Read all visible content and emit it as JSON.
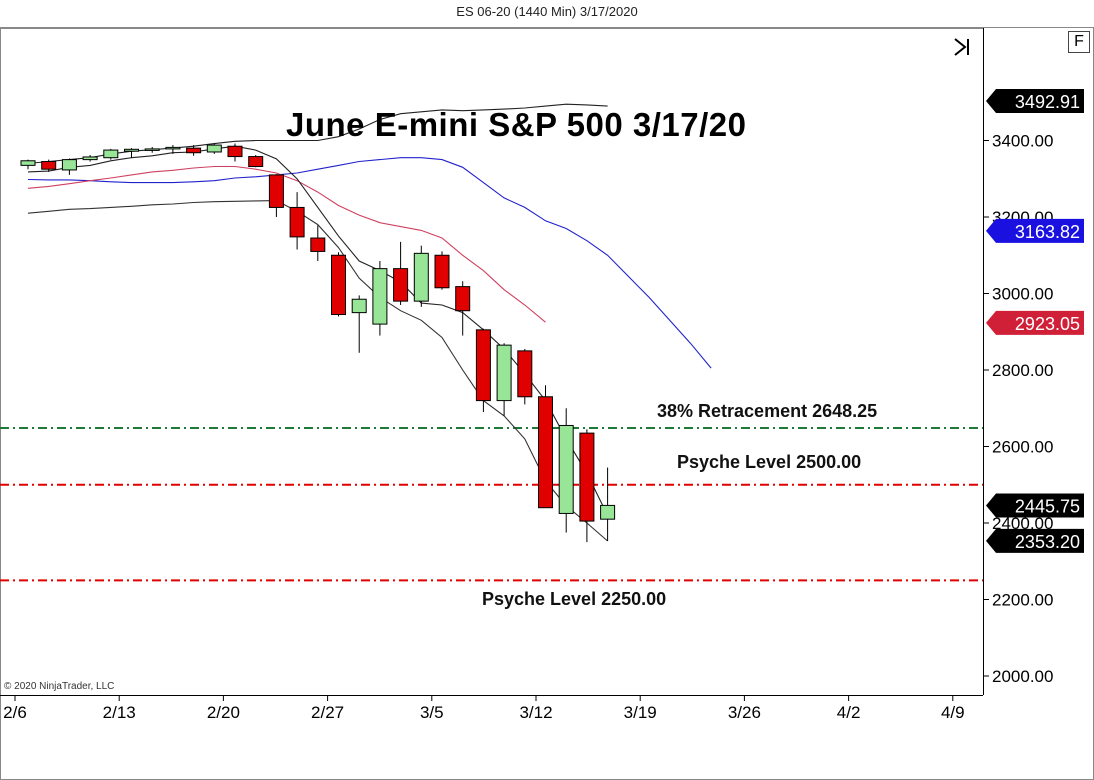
{
  "window": {
    "title": "ES 06-20 (1440 Min)  3/17/2020",
    "f_button": "F"
  },
  "copyright": "© 2020 NinjaTrader, LLC",
  "icons": {
    "scroll_end": "scroll-to-end-icon"
  },
  "colors": {
    "up": "#98e598",
    "down": "#e00000",
    "price_tag": "#000000",
    "blue_tag": "#1a10e0",
    "red_tag": "#d02038",
    "retracement": "#1f7a3a",
    "psyche": "#e00000"
  },
  "chart_data": {
    "type": "candlestick",
    "title": "June E-mini S&P 500 3/17/20",
    "ylim": [
      2000,
      3500
    ],
    "yticks": [
      "2000.00",
      "2200.00",
      "2400.00",
      "2600.00",
      "2800.00",
      "3000.00",
      "3200.00",
      "3400.00"
    ],
    "xticks": [
      "2/6",
      "2/13",
      "2/20",
      "2/27",
      "3/5",
      "3/12",
      "3/19",
      "3/26",
      "4/2",
      "4/9"
    ],
    "candles": [
      {
        "date": "2/6",
        "open": 3335,
        "high": 3350,
        "low": 3325,
        "close": 3347
      },
      {
        "date": "2/7",
        "open": 3345,
        "high": 3350,
        "low": 3318,
        "close": 3325
      },
      {
        "date": "2/10",
        "open": 3323,
        "high": 3353,
        "low": 3310,
        "close": 3350
      },
      {
        "date": "2/11",
        "open": 3350,
        "high": 3362,
        "low": 3345,
        "close": 3357
      },
      {
        "date": "2/12",
        "open": 3355,
        "high": 3378,
        "low": 3350,
        "close": 3375
      },
      {
        "date": "2/13",
        "open": 3372,
        "high": 3380,
        "low": 3355,
        "close": 3377
      },
      {
        "date": "2/14",
        "open": 3375,
        "high": 3383,
        "low": 3368,
        "close": 3378
      },
      {
        "date": "2/18",
        "open": 3378,
        "high": 3388,
        "low": 3365,
        "close": 3382
      },
      {
        "date": "2/19",
        "open": 3380,
        "high": 3388,
        "low": 3360,
        "close": 3368
      },
      {
        "date": "2/20",
        "open": 3370,
        "high": 3392,
        "low": 3365,
        "close": 3388
      },
      {
        "date": "2/21",
        "open": 3385,
        "high": 3392,
        "low": 3345,
        "close": 3358
      },
      {
        "date": "2/24",
        "open": 3358,
        "high": 3362,
        "low": 3330,
        "close": 3332
      },
      {
        "date": "2/25",
        "open": 3310,
        "high": 3312,
        "low": 3200,
        "close": 3225
      },
      {
        "date": "2/26",
        "open": 3225,
        "high": 3265,
        "low": 3115,
        "close": 3148
      },
      {
        "date": "2/27",
        "open": 3145,
        "high": 3178,
        "low": 3085,
        "close": 3110
      },
      {
        "date": "2/28",
        "open": 3100,
        "high": 3108,
        "low": 2940,
        "close": 2945
      },
      {
        "date": "3/2",
        "open": 2950,
        "high": 2995,
        "low": 2845,
        "close": 2985
      },
      {
        "date": "3/3",
        "open": 2920,
        "high": 3085,
        "low": 2890,
        "close": 3065
      },
      {
        "date": "3/4",
        "open": 3065,
        "high": 3135,
        "low": 2970,
        "close": 2980
      },
      {
        "date": "3/5",
        "open": 2980,
        "high": 3125,
        "low": 2965,
        "close": 3105
      },
      {
        "date": "3/6",
        "open": 3100,
        "high": 3110,
        "low": 3010,
        "close": 3015
      },
      {
        "date": "3/9",
        "open": 3018,
        "high": 3032,
        "low": 2890,
        "close": 2955
      },
      {
        "date": "3/10",
        "open": 2905,
        "high": 2908,
        "low": 2690,
        "close": 2720
      },
      {
        "date": "3/11",
        "open": 2720,
        "high": 2870,
        "low": 2680,
        "close": 2865
      },
      {
        "date": "3/12",
        "open": 2850,
        "high": 2855,
        "low": 2710,
        "close": 2730
      },
      {
        "date": "3/13",
        "open": 2730,
        "high": 2760,
        "low": 2440,
        "close": 2440
      },
      {
        "date": "3/16",
        "open": 2425,
        "high": 2700,
        "low": 2375,
        "close": 2655
      },
      {
        "date": "3/17",
        "open": 2635,
        "high": 2645,
        "low": 2350,
        "close": 2405
      },
      {
        "date": "3/18",
        "open": 2410,
        "high": 2545,
        "low": 2353,
        "close": 2446
      }
    ],
    "series": [
      {
        "name": "upper",
        "color": "#222222",
        "values": [
          3340,
          3345,
          3350,
          3355,
          3365,
          3372,
          3376,
          3380,
          3385,
          3392,
          3398,
          3400,
          3400,
          3400,
          3400,
          3410,
          3430,
          3455,
          3470,
          3475,
          3480,
          3478,
          3480,
          3482,
          3485,
          3490,
          3495,
          3493,
          3490
        ]
      },
      {
        "name": "blue",
        "color": "#2222cc",
        "values": [
          3298,
          3297,
          3297,
          3295,
          3292,
          3290,
          3290,
          3290,
          3292,
          3295,
          3302,
          3305,
          3310,
          3315,
          3325,
          3335,
          3345,
          3350,
          3355,
          3355,
          3350,
          3330,
          3290,
          3250,
          3225,
          3190,
          3170,
          3138,
          3100,
          3045,
          2990,
          2930,
          2870,
          2805
        ]
      },
      {
        "name": "red",
        "color": "#d04060",
        "values": [
          3275,
          3280,
          3287,
          3295,
          3302,
          3310,
          3318,
          3322,
          3328,
          3332,
          3332,
          3325,
          3315,
          3295,
          3265,
          3230,
          3205,
          3185,
          3175,
          3165,
          3145,
          3100,
          3060,
          3010,
          2970,
          2925
        ]
      },
      {
        "name": "lower",
        "color": "#333333",
        "values": [
          3210,
          3215,
          3220,
          3222,
          3225,
          3228,
          3232,
          3234,
          3238,
          3240,
          3241,
          3242,
          3243,
          3215,
          3180,
          3120,
          3040,
          2990,
          2955,
          2930,
          2885,
          2800,
          2720,
          2680,
          2620,
          2510,
          2445,
          2400,
          2353
        ]
      },
      {
        "name": "fast",
        "color": "#222222",
        "values": [
          3318,
          3320,
          3330,
          3335,
          3347,
          3355,
          3360,
          3368,
          3370,
          3378,
          3385,
          3375,
          3352,
          3300,
          3225,
          3150,
          3085,
          3060,
          3030,
          2975,
          2970,
          2950,
          2905,
          2855,
          2790,
          2720,
          2620,
          2530,
          2420
        ]
      }
    ],
    "hlines": [
      {
        "label": "38% Retracement 2648.25",
        "value": 2648.25,
        "color": "#1f7a3a"
      },
      {
        "label": "Psyche Level 2500.00",
        "value": 2500,
        "color": "#e00000"
      },
      {
        "label": "Psyche Level 2250.00",
        "value": 2250,
        "color": "#e00000"
      }
    ],
    "price_tags": [
      {
        "value": 3492.91,
        "text": "3492.91",
        "color": "#000000"
      },
      {
        "value": 3163.82,
        "text": "3163.82",
        "color": "#1a10e0"
      },
      {
        "value": 2923.05,
        "text": "2923.05",
        "color": "#d02038"
      },
      {
        "value": 2445.75,
        "text": "2445.75",
        "color": "#000000"
      },
      {
        "value": 2353.2,
        "text": "2353.20",
        "color": "#000000"
      }
    ]
  }
}
